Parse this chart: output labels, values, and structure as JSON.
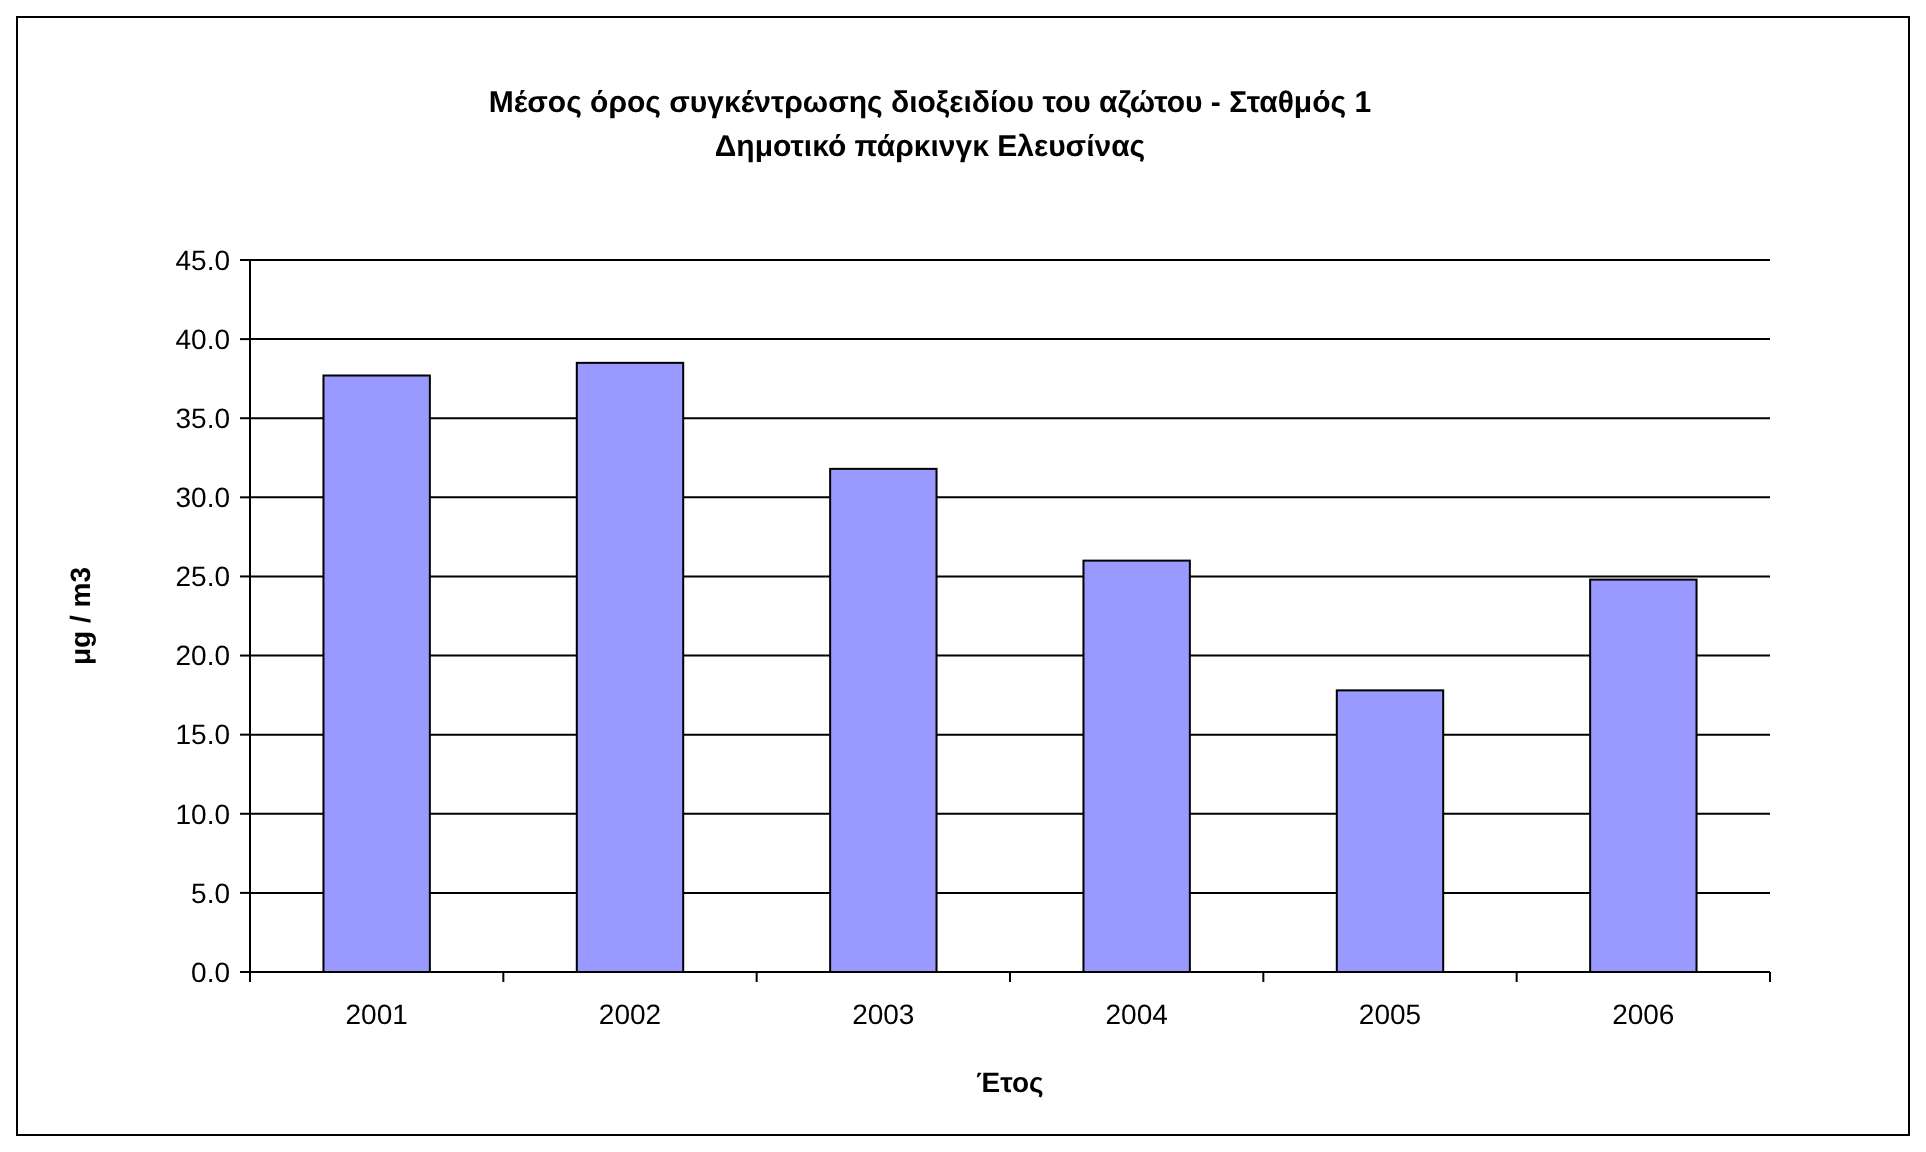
{
  "chart_data": {
    "type": "bar",
    "title": "Μέσος όρος συγκέντρωσης διοξειδίου του αζώτου -  Σταθμός  1\nΔημοτικό πάρκινγκ Ελευσίνας",
    "xlabel": "Έτος",
    "ylabel": "μg / m3",
    "categories": [
      "2001",
      "2002",
      "2003",
      "2004",
      "2005",
      "2006"
    ],
    "values": [
      37.7,
      38.5,
      31.8,
      26.0,
      17.8,
      24.8
    ],
    "color": "#9999ff",
    "ylim": [
      0,
      45
    ],
    "yticks": [
      {
        "value": 0,
        "label": "0.0"
      },
      {
        "value": 5,
        "label": "5.0"
      },
      {
        "value": 10,
        "label": "10.0"
      },
      {
        "value": 15,
        "label": "15.0"
      },
      {
        "value": 20,
        "label": "20.0"
      },
      {
        "value": 25,
        "label": "25.0"
      },
      {
        "value": 30,
        "label": "30.0"
      },
      {
        "value": 35,
        "label": "35.0"
      },
      {
        "value": 40,
        "label": "40.0"
      },
      {
        "value": 45,
        "label": "45.0"
      }
    ],
    "grid": "y"
  }
}
